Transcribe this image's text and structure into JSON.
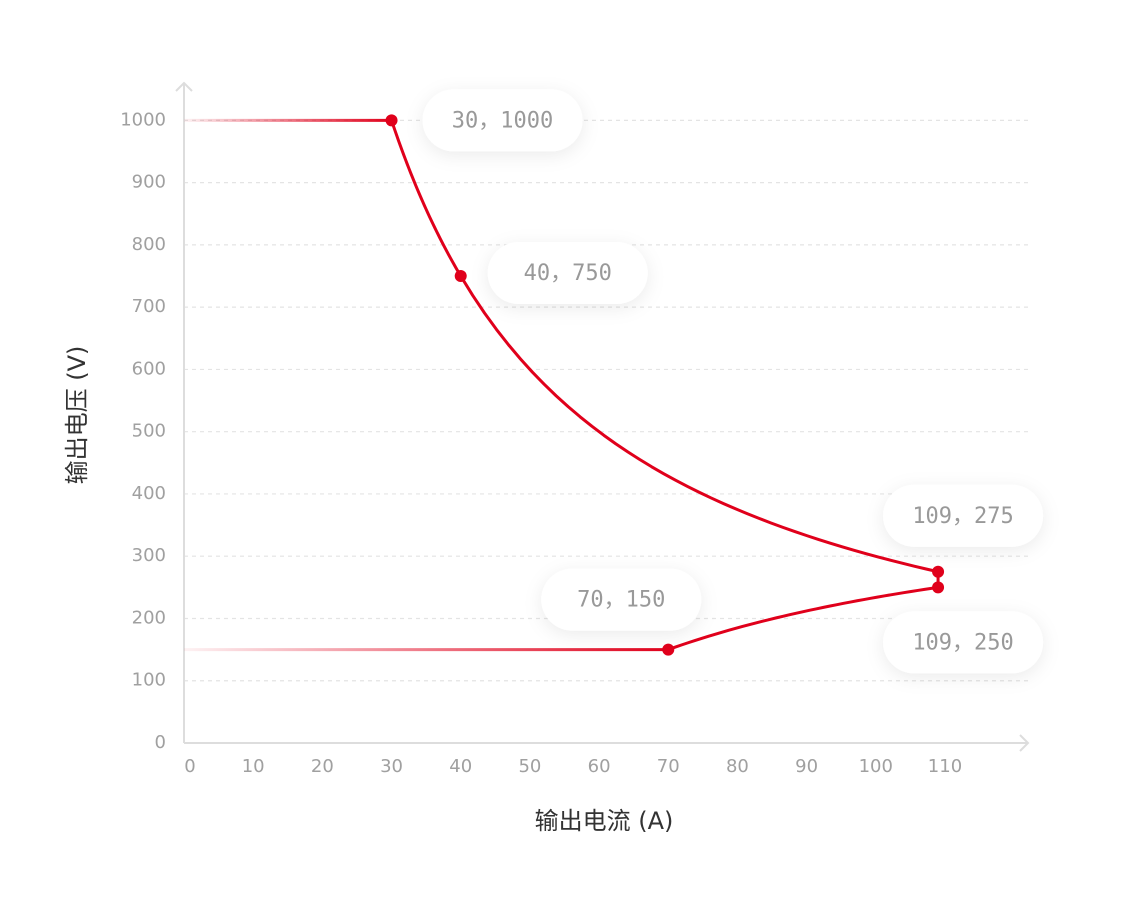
{
  "chart_data": {
    "type": "line",
    "x_label": "输出电流 (A)",
    "y_label": "输出电压 (V)",
    "xlim": [
      0,
      122
    ],
    "ylim": [
      0,
      1060
    ],
    "xticks": [
      0,
      10,
      20,
      30,
      40,
      50,
      60,
      70,
      80,
      90,
      100,
      110
    ],
    "yticks": [
      0,
      100,
      200,
      300,
      400,
      500,
      600,
      700,
      800,
      900,
      1000
    ],
    "grid": true,
    "curve": "hyperbolic",
    "fade_start": true,
    "series": [
      {
        "color": "#e0001b",
        "x": [
          0,
          30,
          40,
          109,
          109
        ],
        "values": [
          1000,
          1000,
          750,
          275,
          250
        ]
      },
      {
        "color": "#e0001b",
        "x": [
          0,
          70,
          109
        ],
        "values": [
          150,
          150,
          250
        ]
      }
    ],
    "annotations": [
      {
        "x": 30,
        "y": 1000,
        "label": "30，1000"
      },
      {
        "x": 40,
        "y": 750,
        "label": "40，750"
      },
      {
        "x": 109,
        "y": 275,
        "label": "109，275"
      },
      {
        "x": 109,
        "y": 250,
        "label": "109，250"
      },
      {
        "x": 70,
        "y": 150,
        "label": "70，150"
      }
    ]
  }
}
